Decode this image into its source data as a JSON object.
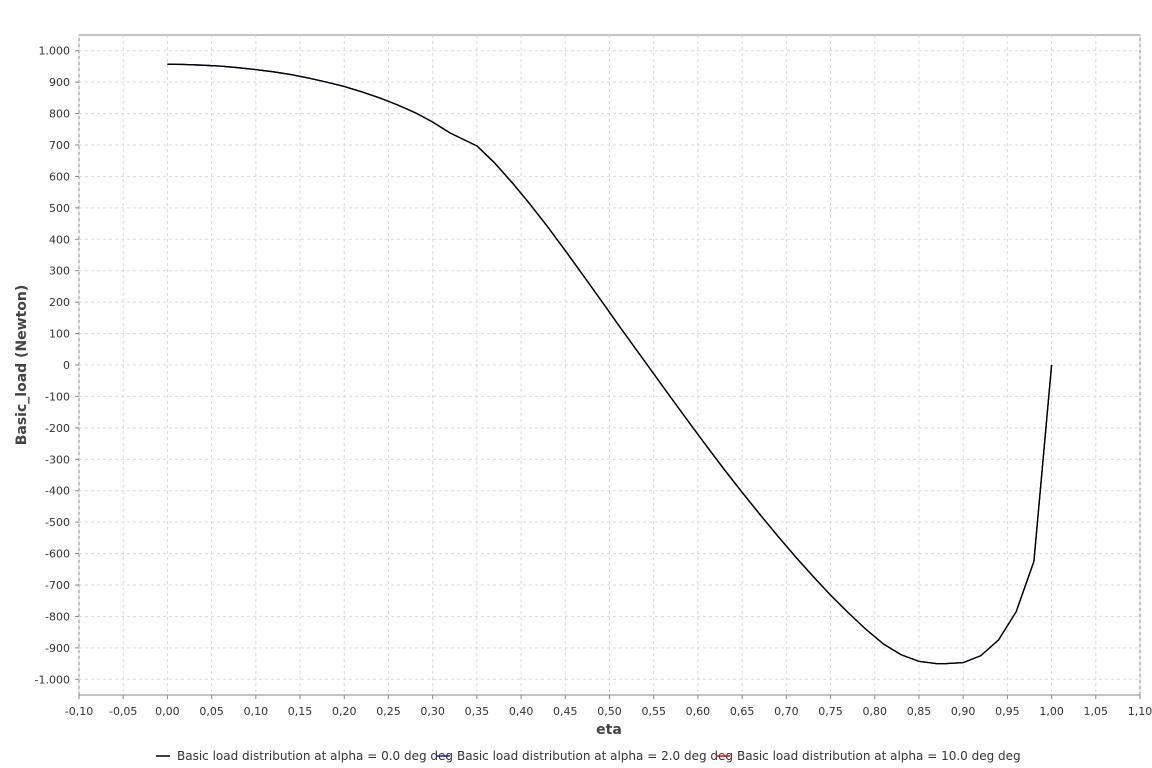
{
  "chart_data": {
    "type": "line",
    "title": "",
    "xlabel": "eta",
    "ylabel": "Basic_load (Newton)",
    "xlim": [
      -0.1,
      1.1
    ],
    "ylim": [
      -1050,
      1050
    ],
    "x_ticks": [
      "-0,10",
      "-0,05",
      "0,00",
      "0,05",
      "0,10",
      "0,15",
      "0,20",
      "0,25",
      "0,30",
      "0,35",
      "0,40",
      "0,45",
      "0,50",
      "0,55",
      "0,60",
      "0,65",
      "0,70",
      "0,75",
      "0,80",
      "0,85",
      "0,90",
      "0,95",
      "1,00",
      "1,05",
      "1,10"
    ],
    "x_tick_values": [
      -0.1,
      -0.05,
      0.0,
      0.05,
      0.1,
      0.15,
      0.2,
      0.25,
      0.3,
      0.35,
      0.4,
      0.45,
      0.5,
      0.55,
      0.6,
      0.65,
      0.7,
      0.75,
      0.8,
      0.85,
      0.9,
      0.95,
      1.0,
      1.05,
      1.1
    ],
    "y_ticks": [
      "1.000",
      "900",
      "800",
      "700",
      "600",
      "500",
      "400",
      "300",
      "200",
      "100",
      "0",
      "-100",
      "-200",
      "-300",
      "-400",
      "-500",
      "-600",
      "-700",
      "-800",
      "-900",
      "-1.000"
    ],
    "y_tick_values": [
      1000,
      900,
      800,
      700,
      600,
      500,
      400,
      300,
      200,
      100,
      0,
      -100,
      -200,
      -300,
      -400,
      -500,
      -600,
      -700,
      -800,
      -900,
      -1000
    ],
    "grid": true,
    "legend_position": "bottom",
    "x": [
      0.0,
      0.02,
      0.04,
      0.06,
      0.08,
      0.1,
      0.12,
      0.14,
      0.16,
      0.18,
      0.2,
      0.22,
      0.24,
      0.26,
      0.28,
      0.3,
      0.32,
      0.35,
      0.37,
      0.39,
      0.41,
      0.43,
      0.45,
      0.47,
      0.49,
      0.51,
      0.53,
      0.55,
      0.57,
      0.59,
      0.61,
      0.63,
      0.65,
      0.67,
      0.69,
      0.71,
      0.73,
      0.75,
      0.77,
      0.79,
      0.81,
      0.83,
      0.85,
      0.87,
      0.88,
      0.9,
      0.92,
      0.94,
      0.96,
      0.98,
      1.0
    ],
    "series": [
      {
        "name": "Basic load distribution at alpha = 0.0 deg deg",
        "color": "#000000",
        "values": [
          957,
          956,
          954,
          951,
          946,
          940,
          933,
          924,
          913,
          900,
          886,
          869,
          850,
          828,
          803,
          773,
          738,
          697,
          643,
          580,
          512,
          440,
          364,
          286,
          207,
          128,
          50,
          -28,
          -106,
          -183,
          -259,
          -333,
          -405,
          -475,
          -543,
          -609,
          -672,
          -732,
          -788,
          -841,
          -888,
          -922,
          -943,
          -950,
          -950,
          -947,
          -925,
          -875,
          -785,
          -625,
          0
        ]
      },
      {
        "name": "Basic load distribution at alpha = 2.0 deg deg",
        "color": "#1a1aa8",
        "values": [
          957,
          956,
          954,
          951,
          946,
          940,
          933,
          924,
          913,
          900,
          886,
          869,
          850,
          828,
          803,
          773,
          738,
          697,
          643,
          580,
          512,
          440,
          364,
          286,
          207,
          128,
          50,
          -28,
          -106,
          -183,
          -259,
          -333,
          -405,
          -475,
          -543,
          -609,
          -672,
          -732,
          -788,
          -841,
          -888,
          -922,
          -943,
          -950,
          -950,
          -947,
          -925,
          -875,
          -785,
          -625,
          0
        ]
      },
      {
        "name": "Basic load distribution at alpha = 10.0 deg deg",
        "color": "#cc1111",
        "values": [
          957,
          956,
          954,
          951,
          946,
          940,
          933,
          924,
          913,
          900,
          886,
          869,
          850,
          828,
          803,
          773,
          738,
          697,
          643,
          580,
          512,
          440,
          364,
          286,
          207,
          128,
          50,
          -28,
          -106,
          -183,
          -259,
          -333,
          -405,
          -475,
          -543,
          -609,
          -672,
          -732,
          -788,
          -841,
          -888,
          -922,
          -943,
          -950,
          -950,
          -947,
          -925,
          -875,
          -785,
          -625,
          0
        ]
      }
    ]
  }
}
